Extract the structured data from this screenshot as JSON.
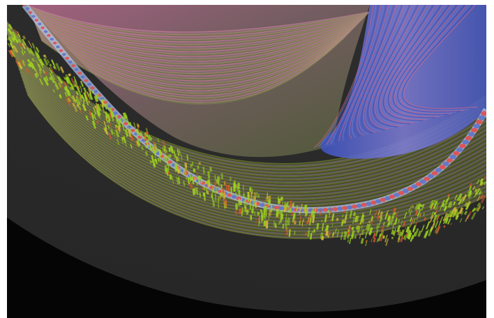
{
  "image": {
    "background": "#ffffff",
    "disc_color": "#2f2f2f",
    "outer_color": "#050505",
    "palette": {
      "yellow_green": "#9dd11f",
      "olive": "#6e7b2e",
      "pink": "#c97592",
      "blue": "#5e73c9",
      "red": "#e14e4e",
      "light_blue": "#b7c9f0"
    }
  }
}
